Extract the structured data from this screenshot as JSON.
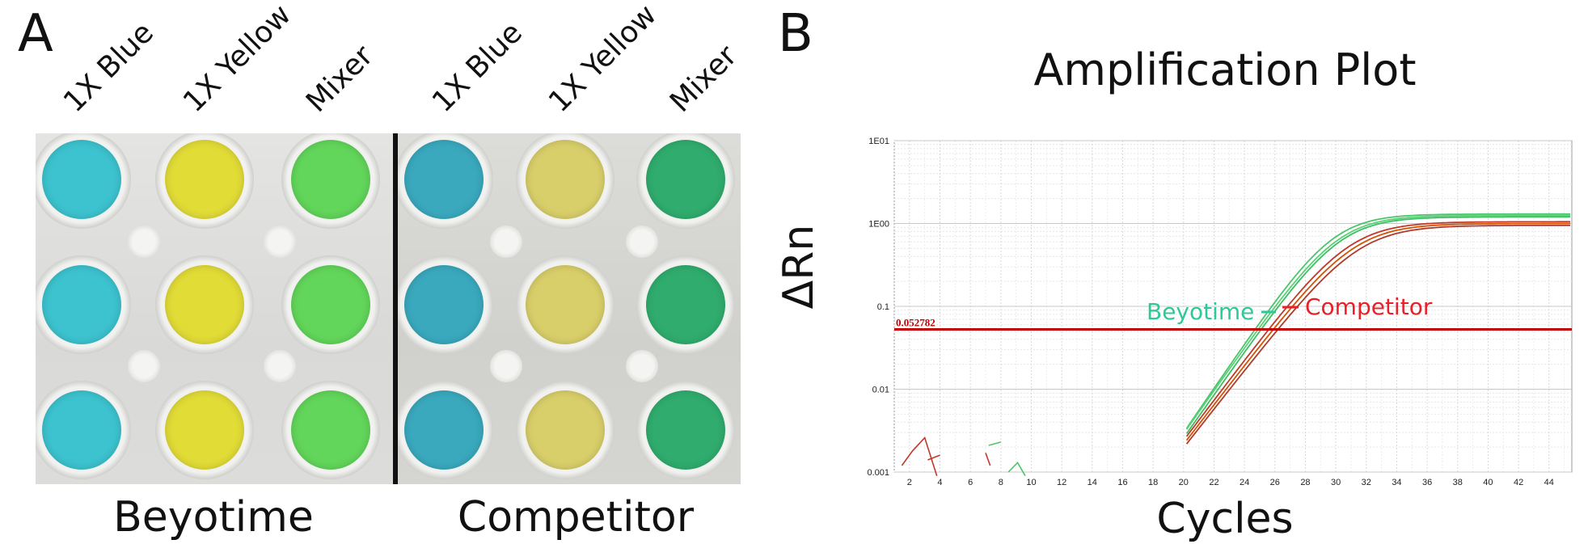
{
  "panels": {
    "a": {
      "letter": "A",
      "columns_left": [
        "1X Blue",
        "1X Yellow",
        "Mixer"
      ],
      "columns_right": [
        "1X Blue",
        "1X Yellow",
        "Mixer"
      ],
      "group_left": "Beyotime",
      "group_right": "Competitor",
      "well_colors_left": [
        "#3cc3cf",
        "#e2dc37",
        "#62d65a"
      ],
      "well_colors_right": [
        "#3aa9be",
        "#d9cf6a",
        "#30ad6e"
      ]
    },
    "b": {
      "letter": "B"
    }
  },
  "chart_data": {
    "type": "line",
    "title": "Amplification Plot",
    "xlabel": "Cycles",
    "ylabel": "ΔRn",
    "y_scale": "log",
    "xlim": [
      1,
      45.5
    ],
    "ylim": [
      0.001,
      10
    ],
    "x_ticks": [
      2,
      4,
      6,
      8,
      10,
      12,
      14,
      16,
      18,
      20,
      22,
      24,
      26,
      28,
      30,
      32,
      34,
      36,
      38,
      40,
      42,
      44
    ],
    "y_ticks": [
      "1E01",
      "1E00",
      "0.1",
      "0.01",
      "0.001"
    ],
    "grid": true,
    "threshold": {
      "value": 0.052782,
      "label": "0.052782",
      "color": "#c00000"
    },
    "annotations": [
      {
        "text": "Beyotime",
        "color": "#2ec99a"
      },
      {
        "text": "Competitor",
        "color": "#e8202a"
      }
    ],
    "series": [
      {
        "color": "#4cc56a",
        "ct": 24.7,
        "plateau": 1.3,
        "slope": 0.62
      },
      {
        "color": "#5ad07a",
        "ct": 24.9,
        "plateau": 1.25,
        "slope": 0.6
      },
      {
        "color": "#3fbf62",
        "ct": 25.1,
        "plateau": 1.2,
        "slope": 0.6
      },
      {
        "color": "#c0392b",
        "ct": 25.6,
        "plateau": 1.05,
        "slope": 0.56
      },
      {
        "color": "#d35400",
        "ct": 25.9,
        "plateau": 1.0,
        "slope": 0.55
      },
      {
        "color": "#b03a2e",
        "ct": 26.2,
        "plateau": 0.95,
        "slope": 0.54
      }
    ],
    "noise_segments": [
      {
        "color": "#c0392b",
        "x": [
          1.5,
          2.2,
          3.0,
          3.8
        ],
        "y": [
          0.0012,
          0.0018,
          0.0026,
          0.0009
        ]
      },
      {
        "color": "#c0392b",
        "x": [
          3.2,
          4.0
        ],
        "y": [
          0.0014,
          0.0016
        ]
      },
      {
        "color": "#c0392b",
        "x": [
          7.0,
          7.3
        ],
        "y": [
          0.0017,
          0.0012
        ]
      },
      {
        "color": "#4cc56a",
        "x": [
          7.2,
          8.0
        ],
        "y": [
          0.0021,
          0.0023
        ]
      },
      {
        "color": "#4cc56a",
        "x": [
          8.5,
          9.1,
          9.6
        ],
        "y": [
          0.001,
          0.0013,
          0.0009
        ]
      }
    ]
  }
}
